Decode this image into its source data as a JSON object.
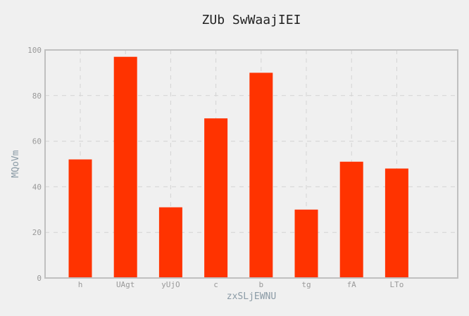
{
  "chart_data": {
    "type": "bar",
    "title": "ZUb SwWaajIEI",
    "xlabel": "zxSLjEWNU",
    "ylabel": "MQoVm",
    "categories": [
      "h",
      "UAgt",
      "yUjO",
      "c",
      "b",
      "tg",
      "fA",
      "LTo"
    ],
    "values": [
      52,
      97,
      31,
      70,
      90,
      30,
      51,
      48
    ],
    "ylim": [
      0,
      100
    ],
    "yticks": [
      0,
      20,
      40,
      60,
      80,
      100
    ],
    "grid": true,
    "colors": {
      "bar": "#ff3300",
      "background": "#f0f0f0",
      "plot_border": "#c0c0c0",
      "grid": "#d3d3d3"
    }
  }
}
